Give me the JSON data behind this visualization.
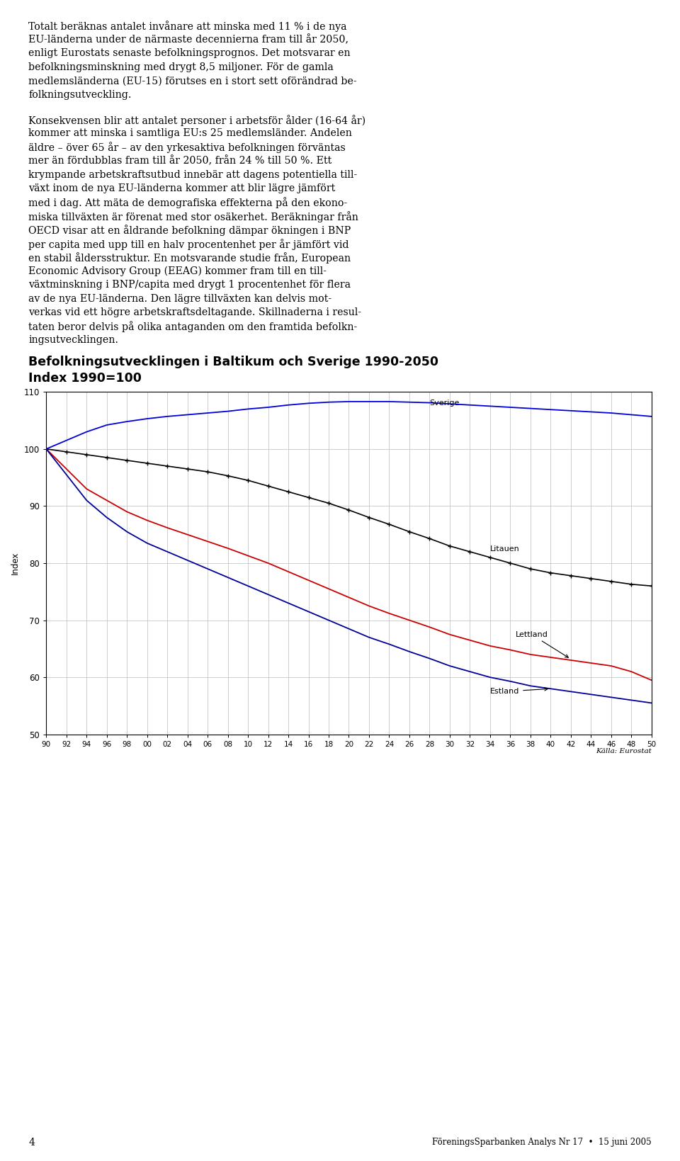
{
  "title_line1": "Befolkningsutvecklingen i Baltikum och Sverige 1990-2050",
  "title_line2": "Index 1990=100",
  "ylabel": "Index",
  "source": "Källa: Eurostat",
  "page_number": "4",
  "footer_text": "FöreningsSparbanken Analys Nr 17  •  15 juni 2005",
  "xlim": [
    1990,
    2050
  ],
  "ylim": [
    50,
    110
  ],
  "sverige_x": [
    1990,
    1992,
    1994,
    1996,
    1998,
    2000,
    2002,
    2004,
    2006,
    2008,
    2010,
    2012,
    2014,
    2016,
    2018,
    2020,
    2022,
    2024,
    2026,
    2028,
    2030,
    2032,
    2034,
    2036,
    2038,
    2040,
    2042,
    2044,
    2046,
    2048,
    2050
  ],
  "sverige_y": [
    100,
    101.5,
    103.0,
    104.2,
    104.8,
    105.3,
    105.7,
    106.0,
    106.3,
    106.6,
    107.0,
    107.3,
    107.7,
    108.0,
    108.2,
    108.3,
    108.3,
    108.3,
    108.2,
    108.1,
    107.9,
    107.7,
    107.5,
    107.3,
    107.1,
    106.9,
    106.7,
    106.5,
    106.3,
    106.0,
    105.7
  ],
  "litauen_x": [
    1990,
    1992,
    1994,
    1996,
    1998,
    2000,
    2002,
    2004,
    2006,
    2008,
    2010,
    2012,
    2014,
    2016,
    2018,
    2020,
    2022,
    2024,
    2026,
    2028,
    2030,
    2032,
    2034,
    2036,
    2038,
    2040,
    2042,
    2044,
    2046,
    2048,
    2050
  ],
  "litauen_y": [
    100,
    99.5,
    99.0,
    98.5,
    98.0,
    97.5,
    97.0,
    96.5,
    96.0,
    95.3,
    94.5,
    93.5,
    92.5,
    91.5,
    90.5,
    89.3,
    88.0,
    86.8,
    85.5,
    84.3,
    83.0,
    82.0,
    81.0,
    80.0,
    79.0,
    78.3,
    77.8,
    77.3,
    76.8,
    76.3,
    76.0
  ],
  "lettland_x": [
    1990,
    1992,
    1994,
    1996,
    1998,
    2000,
    2002,
    2004,
    2006,
    2008,
    2010,
    2012,
    2014,
    2016,
    2018,
    2020,
    2022,
    2024,
    2026,
    2028,
    2030,
    2032,
    2034,
    2036,
    2038,
    2040,
    2042,
    2044,
    2046,
    2048,
    2050
  ],
  "lettland_y": [
    100,
    96.5,
    93.0,
    91.0,
    89.0,
    87.5,
    86.2,
    85.0,
    83.8,
    82.6,
    81.3,
    80.0,
    78.5,
    77.0,
    75.5,
    74.0,
    72.5,
    71.2,
    70.0,
    68.8,
    67.5,
    66.5,
    65.5,
    64.8,
    64.0,
    63.5,
    63.0,
    62.5,
    62.0,
    61.0,
    59.5
  ],
  "estland_x": [
    1990,
    1992,
    1994,
    1996,
    1998,
    2000,
    2002,
    2004,
    2006,
    2008,
    2010,
    2012,
    2014,
    2016,
    2018,
    2020,
    2022,
    2024,
    2026,
    2028,
    2030,
    2032,
    2034,
    2036,
    2038,
    2040,
    2042,
    2044,
    2046,
    2048,
    2050
  ],
  "estland_y": [
    100,
    95.5,
    91.0,
    88.0,
    85.5,
    83.5,
    82.0,
    80.5,
    79.0,
    77.5,
    76.0,
    74.5,
    73.0,
    71.5,
    70.0,
    68.5,
    67.0,
    65.8,
    64.5,
    63.3,
    62.0,
    61.0,
    60.0,
    59.3,
    58.5,
    58.0,
    57.5,
    57.0,
    56.5,
    56.0,
    55.5
  ],
  "label_sverige": "Sverige",
  "label_litauen": "Litauen",
  "label_lettland": "Lettland",
  "label_estland": "Estland",
  "color_sverige": "#0000dd",
  "color_litauen": "#000000",
  "color_lettland": "#cc0000",
  "color_estland": "#0000dd",
  "background_color": "#ffffff",
  "grid_color": "#bbbbbb",
  "paragraph1": "Totalt beräknas antalet invånare att minska med 11 % i de nya EU-länderna under de närmaste decennierna fram till år 2050, enligt Eurostats senaste befolkningsprognos. Det motsvarar en befolkningsminskning med drygt 8,5 miljoner. För de gamla medlemsländerna (EU-15) förutses en i stort sett oförändrad befolkningsutveckling.",
  "paragraph2": "Konsekvensen blir att antalet personer i arbetsför ålder (16-64 år) kommer att minska i samtliga EU:s 25 medlemsländer. Andelen äldre – över 65 år – av den yrkesaktiva befolkningen förväntas mer än fördubblas fram till år 2050, från 24 % till 50 %. Ett krympande arbetskraftsutbud innebär att dagens potentiella tillväxt inom de nya EU-länderna kommer att blir lägre jämfört med i dag. Att mäta de demografiska effekterna på den ekonomiska tillväxten är förenat med stor osäkerhet. Beräkningar från OECD visar att en åldrande befolkning dämpar ökningen i BNP per capita med upp till en halv procentenhet per år jämfört vid en stabil åldersstruktur. En motsvarande studie från, European Economic Advisory Group (EEAG) kommer fram till en tillväxtminskning i BNP/capita med drygt 1 procentenhet för flera av de nya EU-länderna. Den lägre tillväxten kan delvis motverkas vid ett högre arbetskraftsdeltagande. Skillnaderna i resultaten beror delvis på olika antaganden om den framtida befolkningsutvecklingen."
}
